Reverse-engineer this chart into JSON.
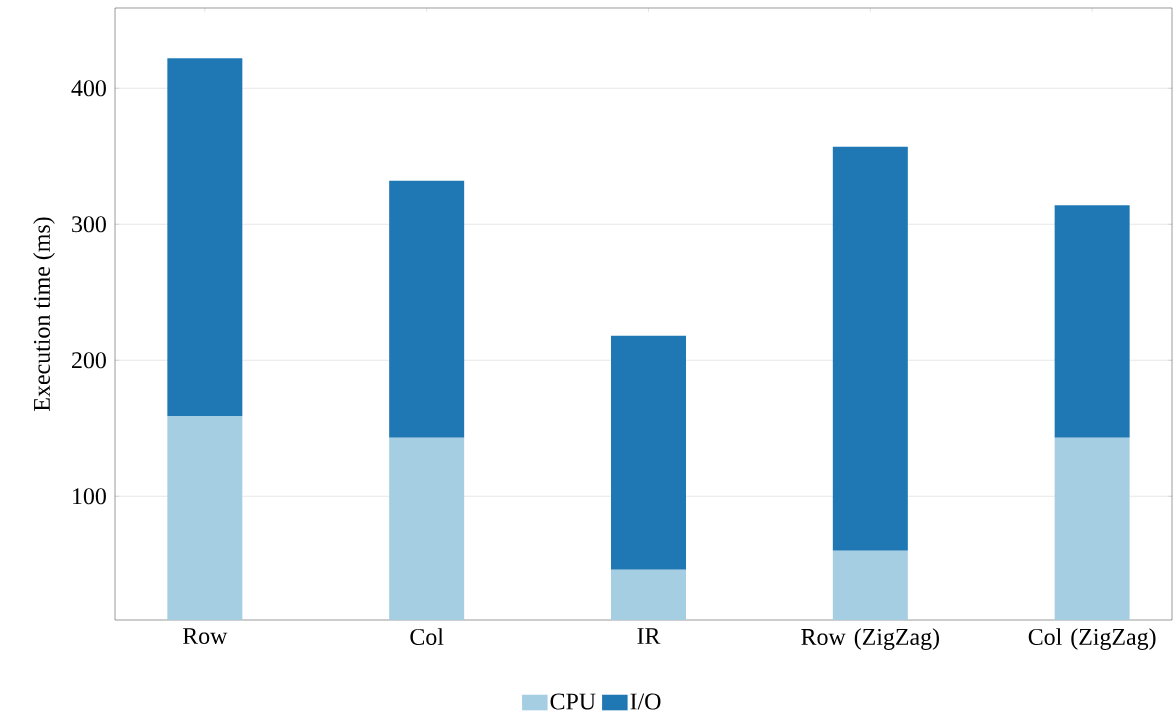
{
  "chart_data": {
    "type": "bar",
    "stacked": true,
    "ylabel": "Execution time (ms)",
    "categories": [
      "Row",
      "Col",
      "IR",
      "Row (ZigZag)",
      "Col (ZigZag)"
    ],
    "series": [
      {
        "name": "CPU",
        "color": "#a6cee3",
        "values": [
          159,
          143,
          46,
          60,
          143
        ]
      },
      {
        "name": "I/O",
        "color": "#1f78b4",
        "values": [
          263,
          189,
          172,
          297,
          171
        ]
      }
    ],
    "ylim": [
      9,
      459
    ],
    "yticks": [
      100,
      200,
      300,
      400
    ],
    "grid": "y",
    "legend": "bottom"
  }
}
